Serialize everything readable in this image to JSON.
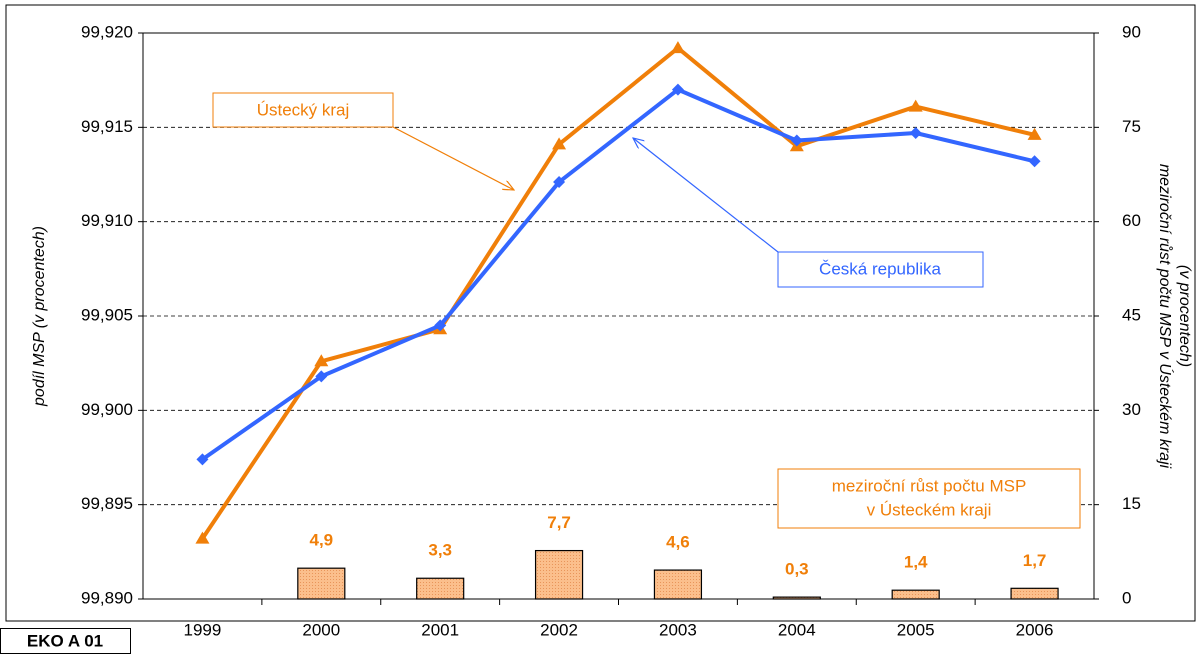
{
  "chart_data": {
    "type": "line-bar-combo",
    "categories": [
      "1999",
      "2000",
      "2001",
      "2002",
      "2003",
      "2004",
      "2005",
      "2006"
    ],
    "series": [
      {
        "name": "Ústecký kraj",
        "color": "#f07f09",
        "marker": "triangle",
        "values": [
          99.8932,
          99.9026,
          99.9043,
          99.9141,
          99.9192,
          99.914,
          99.9161,
          99.9146
        ]
      },
      {
        "name": "Česká republika",
        "color": "#3366ff",
        "marker": "diamond",
        "values": [
          99.8974,
          99.9018,
          99.9045,
          99.9121,
          99.917,
          99.9143,
          99.9147,
          99.9132
        ]
      },
      {
        "name": [
          "meziroční růst počtu MSP",
          "v Ústeckém kraji"
        ],
        "color": "#fbbf8c",
        "label_color": "#f07f09",
        "axis": "y2",
        "values": [
          null,
          4.9,
          3.3,
          7.7,
          4.6,
          0.3,
          1.4,
          1.7
        ],
        "value_labels": [
          null,
          "4,9",
          "3,3",
          "7,7",
          "4,6",
          "0,3",
          "1,4",
          "1,7"
        ]
      }
    ],
    "ylabel": "podíl  MSP (v procentech)",
    "y2label": [
      "meziroční růst počtu MSP v Ústeckém kraji",
      "(v procentech)"
    ],
    "ylim": [
      99.89,
      99.92
    ],
    "yticks": [
      {
        "value": 99.89,
        "label": "99,890"
      },
      {
        "value": 99.895,
        "label": "99,895"
      },
      {
        "value": 99.9,
        "label": "99,900"
      },
      {
        "value": 99.905,
        "label": "99,905"
      },
      {
        "value": 99.91,
        "label": "99,910"
      },
      {
        "value": 99.915,
        "label": "99,915"
      },
      {
        "value": 99.92,
        "label": "99,920"
      }
    ],
    "y2lim": [
      0,
      90
    ],
    "y2ticks": [
      0,
      15,
      30,
      45,
      60,
      75,
      90
    ],
    "grid": true,
    "badge": "EKO  A  01"
  }
}
